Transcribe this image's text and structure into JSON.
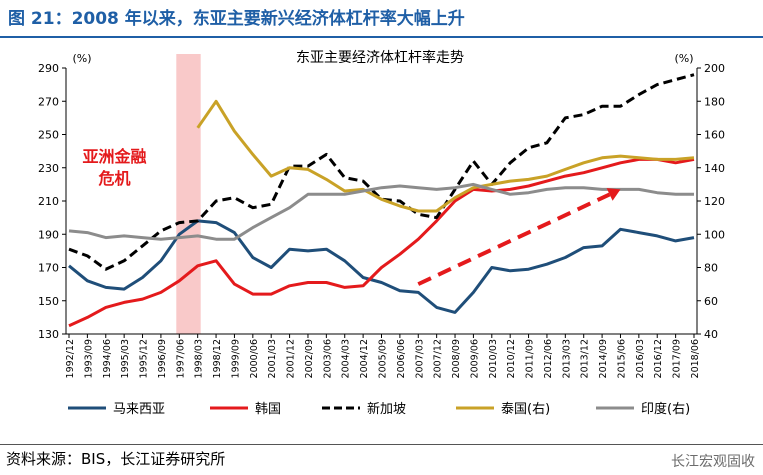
{
  "header": {
    "figure_title": "图 21：2008 年以来，东亚主要新兴经济体杠杆率大幅上升"
  },
  "footer": {
    "source": "资料来源：BIS，长江证券研究所",
    "watermark": "长江宏观固收"
  },
  "colors": {
    "malaysia": "#1f4e79",
    "korea": "#e41a1c",
    "singapore": "#000000",
    "thailand": "#c9a227",
    "india": "#8c8c8c",
    "crisis_band": "#f9c9c9",
    "annotation": "#e41a1c",
    "title_blue": "#1f5fa6"
  },
  "chart_data": {
    "type": "line",
    "title": "东亚主要经济体杠杆率走势",
    "left_axis": {
      "unit": "(%)",
      "ylim": [
        130,
        290
      ],
      "ticks": [
        130,
        150,
        170,
        190,
        210,
        230,
        250,
        270,
        290
      ]
    },
    "right_axis": {
      "unit": "(%)",
      "ylim": [
        40,
        200
      ],
      "ticks": [
        40,
        60,
        80,
        100,
        120,
        140,
        160,
        180,
        200
      ]
    },
    "x_labels": [
      "1992/12",
      "1993/09",
      "1994/06",
      "1995/03",
      "1995/12",
      "1996/09",
      "1997/06",
      "1998/03",
      "1998/12",
      "1999/09",
      "2000/06",
      "2001/03",
      "2001/12",
      "2002/09",
      "2003/06",
      "2004/03",
      "2004/12",
      "2005/09",
      "2006/06",
      "2007/03",
      "2007/12",
      "2008/09",
      "2009/06",
      "2010/03",
      "2010/12",
      "2011/09",
      "2012/06",
      "2013/03",
      "2013/12",
      "2014/09",
      "2015/06",
      "2016/03",
      "2016/12",
      "2017/09",
      "2018/06"
    ],
    "grid": false,
    "legend_position": "bottom",
    "shaded_period": {
      "from": "1997/06",
      "to": "1998/03",
      "label_lines": [
        "亚洲金融",
        "危机"
      ]
    },
    "trend_arrow": {
      "from": [
        "2007/03",
        160
      ],
      "to": [
        "2015/06",
        217
      ]
    },
    "series": [
      {
        "name": "马来西亚",
        "key": "malaysia",
        "axis": "left",
        "style": "solid",
        "values": [
          171,
          162,
          158,
          157,
          164,
          174,
          190,
          198,
          197,
          191,
          176,
          170,
          181,
          180,
          181,
          174,
          164,
          161,
          156,
          155,
          146,
          143,
          155,
          170,
          168,
          169,
          172,
          176,
          182,
          183,
          193,
          191,
          189,
          186,
          188
        ]
      },
      {
        "name": "韩国",
        "key": "korea",
        "axis": "left",
        "style": "solid",
        "values": [
          135,
          140,
          146,
          149,
          151,
          155,
          162,
          171,
          174,
          160,
          154,
          154,
          159,
          161,
          161,
          158,
          159,
          170,
          178,
          187,
          198,
          210,
          217,
          216,
          217,
          219,
          222,
          225,
          227,
          230,
          233,
          235,
          235,
          233,
          235
        ]
      },
      {
        "name": "新加坡",
        "key": "singapore",
        "axis": "right",
        "style": "dashed",
        "values": [
          91,
          87,
          79,
          84,
          93,
          102,
          107,
          108,
          120,
          122,
          116,
          118,
          141,
          141,
          148,
          134,
          132,
          121,
          120,
          112,
          110,
          127,
          144,
          130,
          143,
          152,
          155,
          170,
          172,
          177,
          177,
          184,
          190,
          193,
          196
        ]
      },
      {
        "name": "泰国(右)",
        "key": "thailand",
        "axis": "right",
        "style": "solid",
        "values": [
          null,
          null,
          null,
          null,
          null,
          null,
          null,
          164,
          180,
          162,
          148,
          135,
          140,
          139,
          133,
          126,
          127,
          121,
          117,
          114,
          114,
          122,
          128,
          130,
          132,
          133,
          135,
          139,
          143,
          146,
          147,
          146,
          145,
          145,
          146
        ]
      },
      {
        "name": "印度(右)",
        "key": "india",
        "axis": "right",
        "style": "solid",
        "values": [
          102,
          101,
          98,
          99,
          98,
          97,
          98,
          99,
          97,
          97,
          104,
          110,
          116,
          124,
          124,
          124,
          126,
          128,
          129,
          128,
          127,
          128,
          130,
          127,
          124,
          125,
          127,
          128,
          128,
          127,
          127,
          127,
          125,
          124,
          124
        ]
      }
    ]
  }
}
